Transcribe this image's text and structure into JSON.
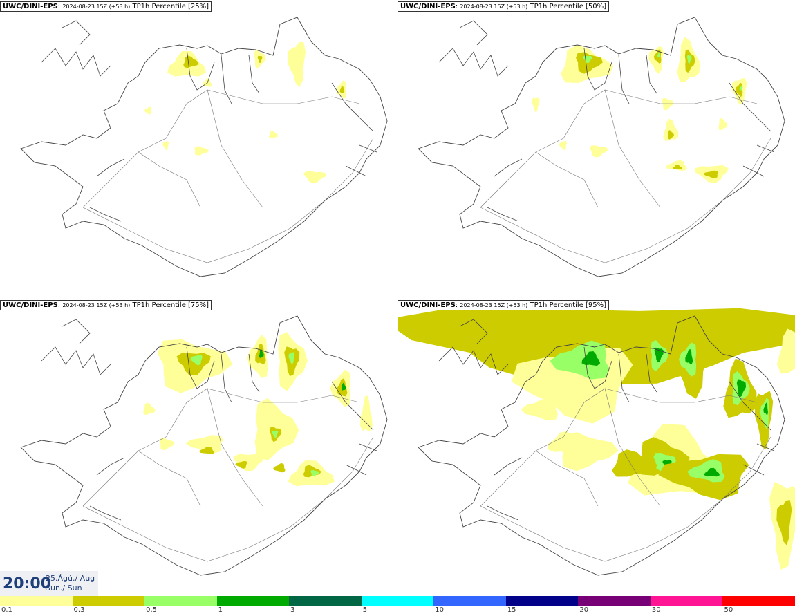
{
  "panels": [
    {
      "prefix": "UWC/DINI-EPS",
      "run": "2024-08-23 15Z (+53 h)",
      "label": "TP1h Percentile [25%]",
      "percentile": 25
    },
    {
      "prefix": "UWC/DINI-EPS",
      "run": "2024-08-23 15Z (+53 h)",
      "label": "TP1h Percentile [50%]",
      "percentile": 50
    },
    {
      "prefix": "UWC/DINI-EPS",
      "run": "2024-08-23 15Z (+53 h)",
      "label": "TP1h Percentile [75%]",
      "percentile": 75
    },
    {
      "prefix": "UWC/DINI-EPS",
      "run": "2024-08-23 15Z (+53 h)",
      "label": "TP1h Percentile [95%]",
      "percentile": 95
    }
  ],
  "valid_time": {
    "time": "20:00",
    "date": "25.Ágú./ Aug",
    "day": "Sun./ Sun"
  },
  "colorbar": {
    "colors": [
      "#ffff99",
      "#cccc00",
      "#99ff66",
      "#00aa00",
      "#006644",
      "#00ffff",
      "#3366ff",
      "#000088",
      "#770077",
      "#ff1493",
      "#ff0000"
    ],
    "ticks": [
      "0.1",
      "0.3",
      "0.5",
      "1",
      "3",
      "5",
      "10",
      "15",
      "20",
      "30",
      "50"
    ]
  }
}
